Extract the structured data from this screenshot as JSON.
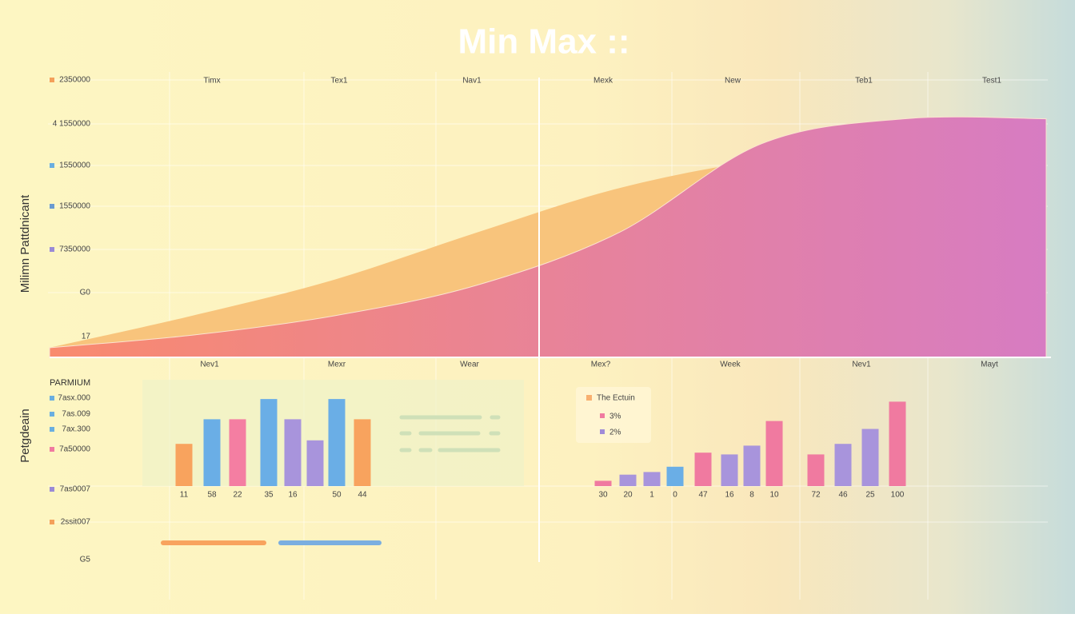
{
  "title": "Min Max ::",
  "chart_data": [
    {
      "type": "area",
      "y_label": "Milimn Pattdnicant",
      "y_labels": [
        "2350000",
        "4 1550000",
        "1550000",
        "1550000",
        "7350000",
        "G0",
        "17"
      ],
      "y_label_colors": [
        "#f4a05a",
        null,
        "#6aaee0",
        "#6a9ad0",
        "#9a8ad6",
        null,
        null
      ],
      "top_labels": [
        "Timx",
        "Tex1",
        "Nav1",
        "Mexk",
        "New",
        "Teb1",
        "Test1"
      ],
      "bottom_labels": [
        "Nev1",
        "Mexr",
        "Wear",
        "Mex?",
        "Week",
        "Nev1",
        "Mayt"
      ],
      "ylim": [
        0,
        100
      ],
      "series": [
        {
          "color": "#f8c47c",
          "values": [
            3.5,
            15,
            28,
            45,
            61,
            71,
            75,
            78
          ]
        },
        {
          "color": "#f98a6e",
          "color_end": "#d77cc2",
          "values": [
            3.5,
            8,
            15,
            26,
            45,
            77,
            86,
            86
          ]
        }
      ]
    },
    {
      "type": "bar",
      "label": "PARMIUM",
      "y_label": "Petgdeain",
      "y_labels": [
        "7asx.000",
        "7as.009",
        "7ax.300",
        "7a50000",
        "7as0007",
        "2ssit007",
        "G5"
      ],
      "y_label_colors": [
        "#6aaee0",
        "#6aaee0",
        "#6aaee0",
        "#f07aa0",
        "#9a8ad6",
        "#f4a05a",
        null
      ],
      "categories": [
        "11",
        "58",
        "22",
        "35",
        "16",
        null,
        "50",
        "44"
      ],
      "values": [
        48,
        76,
        76,
        99,
        76,
        52,
        99,
        76
      ],
      "colors": [
        "#f8a35e",
        "#6aaee6",
        "#f47ea2",
        "#6aaee6",
        "#a894dc",
        "#a894dc",
        "#6aaee6",
        "#f8a35e"
      ],
      "ylim": [
        0,
        100
      ]
    },
    {
      "type": "bar",
      "legend": {
        "title": "The Ectuin",
        "title_color": "#f8b070",
        "items": [
          "3%",
          "2%"
        ],
        "colors": [
          "#f07aa0",
          "#a08ad8"
        ]
      },
      "categories": [
        "30",
        "20",
        "1",
        "0",
        "47",
        "16",
        "8",
        "10",
        "72",
        "46",
        "25",
        "100"
      ],
      "values": [
        6,
        13,
        16,
        22,
        38,
        36,
        46,
        74,
        36,
        48,
        65,
        96
      ],
      "colors": [
        "#f07aa0",
        "#a894dc",
        "#a894dc",
        "#6aaee6",
        "#f07aa0",
        "#a894dc",
        "#a894dc",
        "#f07aa0",
        "#f07aa0",
        "#a894dc",
        "#a894dc",
        "#f07aa0"
      ],
      "ylim": [
        0,
        100
      ]
    }
  ]
}
